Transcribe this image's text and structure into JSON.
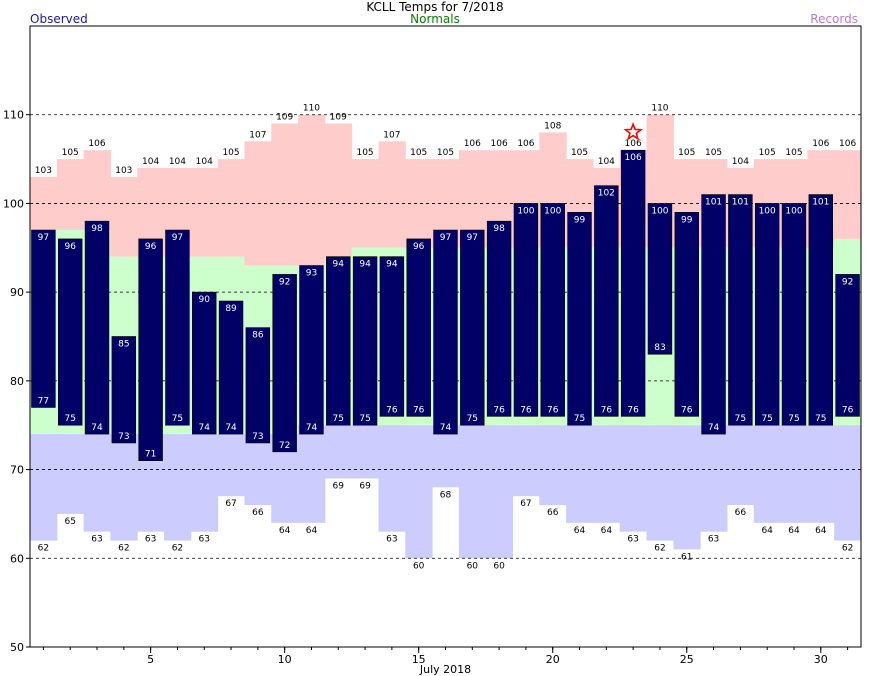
{
  "header": {
    "title": "KCLL Temps for 7/2018",
    "observed_label": "Observed",
    "normals_label": "Normals",
    "records_label": "Records"
  },
  "chart_data": {
    "type": "bar",
    "title": "KCLL Temps for 7/2018",
    "xlabel": "July 2018",
    "ylabel": "",
    "ylim": [
      50,
      120
    ],
    "yticks": [
      50,
      60,
      70,
      80,
      90,
      100,
      110
    ],
    "xticks": [
      5,
      10,
      15,
      20,
      25,
      30
    ],
    "grid_lines": [
      60,
      70,
      80,
      90,
      100,
      110
    ],
    "days": [
      1,
      2,
      3,
      4,
      5,
      6,
      7,
      8,
      9,
      10,
      11,
      12,
      13,
      14,
      15,
      16,
      17,
      18,
      19,
      20,
      21,
      22,
      23,
      24,
      25,
      26,
      27,
      28,
      29,
      30,
      31
    ],
    "series": [
      {
        "name": "Observed",
        "kind": "observed_high",
        "values": [
          97,
          96,
          98,
          85,
          96,
          97,
          90,
          89,
          86,
          92,
          93,
          94,
          94,
          94,
          96,
          97,
          97,
          98,
          100,
          100,
          99,
          102,
          106,
          100,
          99,
          101,
          101,
          100,
          100,
          101,
          92
        ]
      },
      {
        "name": "Observed",
        "kind": "observed_low",
        "values": [
          77,
          75,
          74,
          73,
          71,
          75,
          74,
          74,
          73,
          72,
          74,
          75,
          75,
          76,
          76,
          74,
          75,
          76,
          76,
          76,
          75,
          76,
          76,
          83,
          76,
          74,
          75,
          75,
          75,
          75,
          76
        ]
      },
      {
        "name": "Normals",
        "kind": "normal_high",
        "values": [
          97,
          97,
          97,
          94,
          94,
          94,
          94,
          94,
          93,
          93,
          93,
          94,
          95,
          95,
          95,
          95,
          95,
          95,
          95,
          95,
          95,
          95,
          95,
          95,
          95,
          95,
          95,
          95,
          95,
          95,
          96
        ]
      },
      {
        "name": "Normals",
        "kind": "normal_low",
        "values": [
          74,
          74,
          74,
          74,
          74,
          74,
          74,
          74,
          74,
          74,
          75,
          75,
          75,
          75,
          75,
          75,
          75,
          75,
          75,
          75,
          75,
          75,
          75,
          75,
          75,
          75,
          75,
          75,
          75,
          75,
          75
        ]
      },
      {
        "name": "Records",
        "kind": "record_high",
        "values": [
          103,
          105,
          106,
          103,
          104,
          104,
          104,
          105,
          107,
          109,
          110,
          109,
          105,
          107,
          105,
          105,
          106,
          106,
          106,
          108,
          105,
          104,
          106,
          110,
          105,
          105,
          104,
          105,
          105,
          106,
          106
        ]
      },
      {
        "name": "Records",
        "kind": "record_low",
        "values": [
          62,
          65,
          63,
          62,
          63,
          62,
          63,
          67,
          66,
          64,
          64,
          69,
          69,
          63,
          60,
          68,
          60,
          60,
          67,
          66,
          64,
          64,
          63,
          62,
          61,
          63,
          66,
          64,
          64,
          64,
          62
        ]
      }
    ],
    "record_marker": {
      "day": 23,
      "value": 106,
      "symbol": "star"
    },
    "colors": {
      "observed": "#000066",
      "observed_text": "#ffffff",
      "normal_band": "#ccffcc",
      "record_high_band": "#ffcccc",
      "record_low_band": "#ccccff",
      "grid": "#000000",
      "star": "#ff0000"
    }
  }
}
